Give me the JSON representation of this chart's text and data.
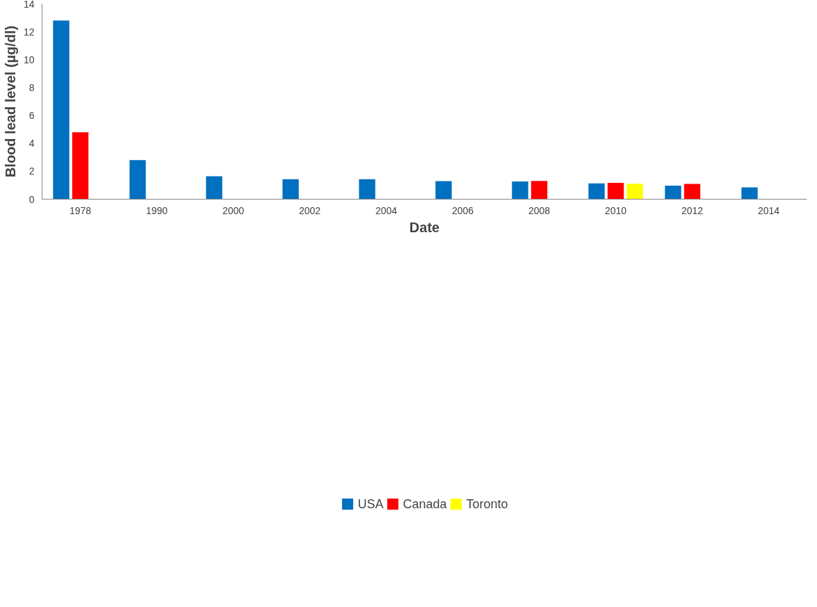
{
  "chart_data": {
    "type": "bar",
    "xlabel": "Date",
    "ylabel": "Blood lead level (µg/dl)",
    "categories": [
      "1978",
      "1990",
      "2000",
      "2002",
      "2004",
      "2006",
      "2008",
      "2010",
      "2012",
      "2014"
    ],
    "series": [
      {
        "name": "USA",
        "color": "#0070c0",
        "values": [
          12.8,
          2.8,
          1.65,
          1.43,
          1.43,
          1.29,
          1.27,
          1.13,
          0.97,
          0.85
        ]
      },
      {
        "name": "Canada",
        "color": "#ff0000",
        "values": [
          4.8,
          null,
          null,
          null,
          null,
          null,
          1.31,
          1.17,
          1.09,
          null
        ]
      },
      {
        "name": "Toronto",
        "color": "#ffff00",
        "values": [
          null,
          null,
          null,
          null,
          null,
          null,
          null,
          1.11,
          null,
          null
        ]
      }
    ],
    "ylim": [
      0,
      14
    ],
    "yticks": [
      0,
      2,
      4,
      6,
      8,
      10,
      12,
      14
    ],
    "grid": false,
    "legend": "bottom"
  }
}
